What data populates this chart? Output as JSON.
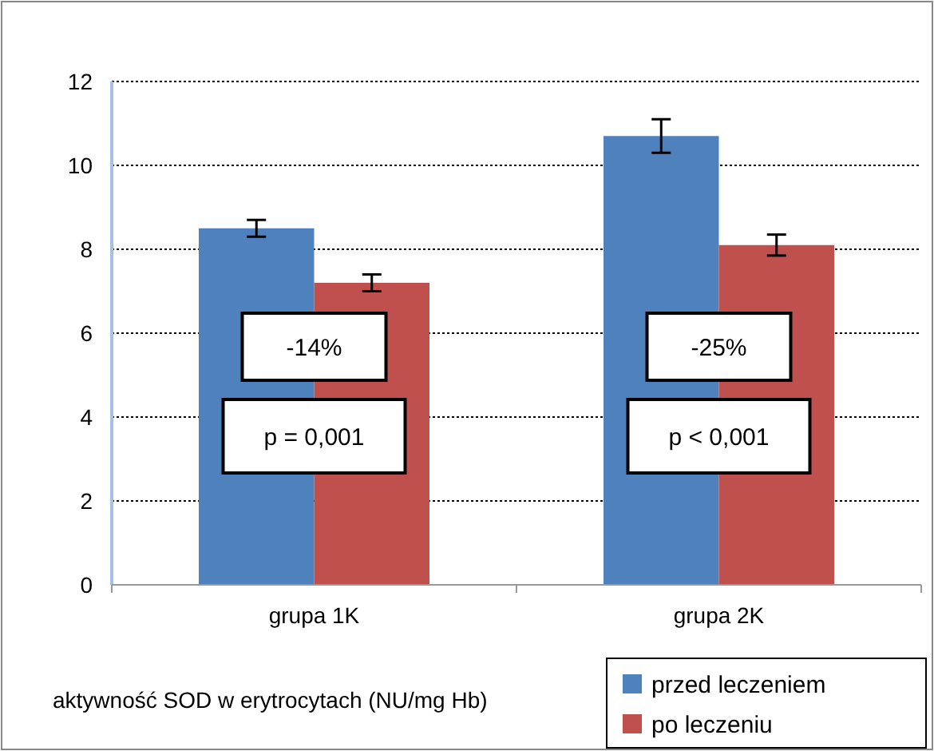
{
  "chart_data": {
    "type": "bar",
    "categories": [
      "grupa 1K",
      "grupa 2K"
    ],
    "series": [
      {
        "name": "przed leczeniem",
        "color": "#4f81bd",
        "values": [
          8.5,
          10.7
        ],
        "errors": [
          0.2,
          0.4
        ]
      },
      {
        "name": "po leczeniu",
        "color": "#c0504d",
        "values": [
          7.2,
          8.1
        ],
        "errors": [
          0.2,
          0.25
        ]
      }
    ],
    "ylim": [
      0,
      12
    ],
    "yticks": [
      0,
      2,
      4,
      6,
      8,
      10,
      12
    ],
    "grid": "y",
    "legend": "bottom right",
    "xlabel": "aktywność SOD w erytrocytach (NU/mg Hb)",
    "annotations": [
      "-14%",
      "p = 0,001",
      "-25%",
      "p < 0,001"
    ]
  }
}
